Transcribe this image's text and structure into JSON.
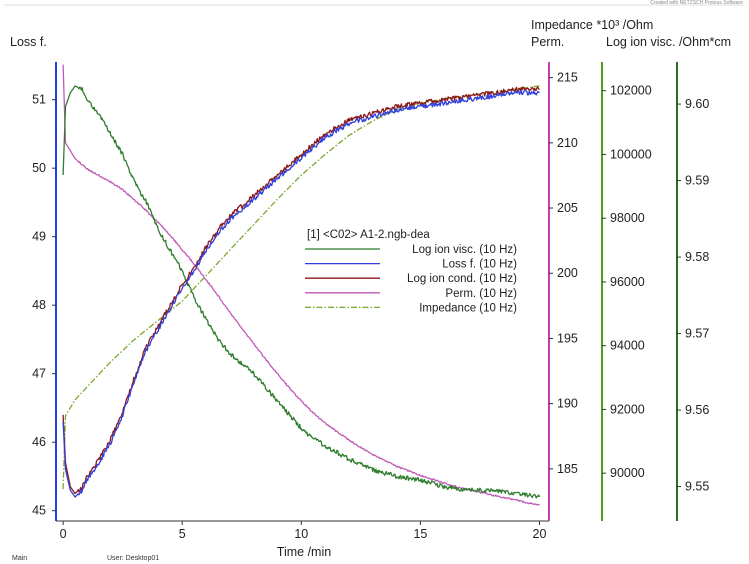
{
  "header": {
    "watermark": "Created with NETZSCH Proteus Software"
  },
  "footer": {
    "left": "Main",
    "user": "User: Desktop01"
  },
  "colors": {
    "log_ion_visc": "#2f7d2f",
    "loss_f": "#2e3fdc",
    "log_ion_cond": "#8b1a1a",
    "perm": "#c05ab8",
    "impedance": "#7aa82a",
    "left_axis": "#1f3fe0",
    "right_axis_perm": "#c040b0",
    "right_axis_imp": "#4f9e1a",
    "right_axis_visc": "#2b6e1f"
  },
  "chart_data": {
    "type": "line",
    "title": "",
    "xlabel": "Time /min",
    "x_ticks": [
      "0",
      "5",
      "10",
      "15",
      "20"
    ],
    "xlim": [
      -0.3,
      20.4
    ],
    "axes": {
      "loss_f": {
        "label": "Loss f.",
        "ticks": [
          "45",
          "46",
          "47",
          "48",
          "49",
          "50",
          "51"
        ],
        "range": [
          44.85,
          51.55
        ]
      },
      "perm": {
        "label": "Perm.",
        "extra_label": "Impedance *10³ /Ohm",
        "ticks": [
          "185",
          "190",
          "195",
          "200",
          "205",
          "210",
          "215"
        ],
        "range": [
          181.0,
          216.2
        ]
      },
      "impedance": {
        "label": "",
        "ticks": [
          "90000",
          "92000",
          "94000",
          "96000",
          "98000",
          "100000",
          "102000"
        ],
        "range": [
          88500,
          102900
        ]
      },
      "log_ion_visc": {
        "label": "Log ion visc. /Ohm*cm",
        "ticks": [
          "9.55",
          "9.56",
          "9.57",
          "9.58",
          "9.59",
          "9.60"
        ],
        "range": [
          9.5455,
          9.6055
        ]
      }
    },
    "legend": {
      "title": "[1] <C02> A1-2.ngb-dea",
      "position": "center"
    },
    "series": [
      {
        "name": "Log ion visc. (10 Hz)",
        "axis": "loss_f",
        "style": "solid",
        "points": [
          [
            0.0,
            49.9
          ],
          [
            0.1,
            50.9
          ],
          [
            0.3,
            51.1
          ],
          [
            0.5,
            51.2
          ],
          [
            0.8,
            51.15
          ],
          [
            1.0,
            51.0
          ],
          [
            1.5,
            50.8
          ],
          [
            2.0,
            50.5
          ],
          [
            2.5,
            50.2
          ],
          [
            3.0,
            49.8
          ],
          [
            3.5,
            49.5
          ],
          [
            4.0,
            49.1
          ],
          [
            4.5,
            48.8
          ],
          [
            5.0,
            48.5
          ],
          [
            5.5,
            48.1
          ],
          [
            6.0,
            47.8
          ],
          [
            6.5,
            47.5
          ],
          [
            7.0,
            47.3
          ],
          [
            7.5,
            47.15
          ],
          [
            8.0,
            47.0
          ],
          [
            8.5,
            46.8
          ],
          [
            9.0,
            46.6
          ],
          [
            9.5,
            46.4
          ],
          [
            10.0,
            46.2
          ],
          [
            10.5,
            46.05
          ],
          [
            11.0,
            45.95
          ],
          [
            12.0,
            45.75
          ],
          [
            13.0,
            45.6
          ],
          [
            14.0,
            45.5
          ],
          [
            15.0,
            45.45
          ],
          [
            16.0,
            45.35
          ],
          [
            17.0,
            45.3
          ],
          [
            18.0,
            45.3
          ],
          [
            19.0,
            45.25
          ],
          [
            20.0,
            45.2
          ]
        ]
      },
      {
        "name": "Loss f. (10 Hz)",
        "axis": "loss_f",
        "style": "solid",
        "points": [
          [
            0.0,
            46.3
          ],
          [
            0.1,
            45.6
          ],
          [
            0.3,
            45.3
          ],
          [
            0.5,
            45.2
          ],
          [
            0.8,
            45.3
          ],
          [
            1.0,
            45.45
          ],
          [
            1.5,
            45.7
          ],
          [
            2.0,
            46.0
          ],
          [
            2.5,
            46.4
          ],
          [
            3.0,
            46.9
          ],
          [
            3.5,
            47.35
          ],
          [
            4.0,
            47.65
          ],
          [
            4.5,
            47.95
          ],
          [
            5.0,
            48.25
          ],
          [
            5.5,
            48.5
          ],
          [
            6.0,
            48.8
          ],
          [
            6.5,
            49.05
          ],
          [
            7.0,
            49.25
          ],
          [
            7.5,
            49.4
          ],
          [
            8.0,
            49.55
          ],
          [
            8.5,
            49.7
          ],
          [
            9.0,
            49.85
          ],
          [
            9.5,
            50.0
          ],
          [
            10.0,
            50.15
          ],
          [
            10.5,
            50.3
          ],
          [
            11.0,
            50.45
          ],
          [
            12.0,
            50.65
          ],
          [
            13.0,
            50.75
          ],
          [
            14.0,
            50.85
          ],
          [
            15.0,
            50.9
          ],
          [
            16.0,
            50.95
          ],
          [
            17.0,
            51.0
          ],
          [
            18.0,
            51.05
          ],
          [
            19.0,
            51.1
          ],
          [
            20.0,
            51.1
          ]
        ]
      },
      {
        "name": "Log ion cond. (10 Hz)",
        "axis": "loss_f",
        "style": "solid",
        "points": [
          [
            0.0,
            46.4
          ],
          [
            0.1,
            45.7
          ],
          [
            0.3,
            45.35
          ],
          [
            0.5,
            45.25
          ],
          [
            0.8,
            45.35
          ],
          [
            1.0,
            45.5
          ],
          [
            1.5,
            45.75
          ],
          [
            2.0,
            46.05
          ],
          [
            2.5,
            46.45
          ],
          [
            3.0,
            46.95
          ],
          [
            3.5,
            47.4
          ],
          [
            4.0,
            47.7
          ],
          [
            4.5,
            48.0
          ],
          [
            5.0,
            48.3
          ],
          [
            5.5,
            48.55
          ],
          [
            6.0,
            48.85
          ],
          [
            6.5,
            49.1
          ],
          [
            7.0,
            49.3
          ],
          [
            7.5,
            49.45
          ],
          [
            8.0,
            49.6
          ],
          [
            8.5,
            49.75
          ],
          [
            9.0,
            49.9
          ],
          [
            9.5,
            50.05
          ],
          [
            10.0,
            50.2
          ],
          [
            10.5,
            50.35
          ],
          [
            11.0,
            50.5
          ],
          [
            12.0,
            50.7
          ],
          [
            13.0,
            50.8
          ],
          [
            14.0,
            50.9
          ],
          [
            15.0,
            50.95
          ],
          [
            16.0,
            51.0
          ],
          [
            17.0,
            51.05
          ],
          [
            18.0,
            51.1
          ],
          [
            19.0,
            51.15
          ],
          [
            20.0,
            51.15
          ]
        ]
      },
      {
        "name": "Perm. (10 Hz)",
        "axis": "perm",
        "style": "solid",
        "points": [
          [
            0.0,
            216.0
          ],
          [
            0.1,
            210.0
          ],
          [
            0.5,
            208.8
          ],
          [
            1.0,
            208.0
          ],
          [
            1.5,
            207.5
          ],
          [
            2.0,
            207.0
          ],
          [
            2.5,
            206.4
          ],
          [
            3.0,
            205.6
          ],
          [
            3.5,
            204.8
          ],
          [
            4.0,
            203.9
          ],
          [
            4.5,
            202.9
          ],
          [
            5.0,
            201.8
          ],
          [
            5.5,
            200.7
          ],
          [
            6.0,
            199.5
          ],
          [
            6.5,
            198.3
          ],
          [
            7.0,
            197.0
          ],
          [
            7.5,
            195.8
          ],
          [
            8.0,
            194.6
          ],
          [
            8.5,
            193.4
          ],
          [
            9.0,
            192.3
          ],
          [
            9.5,
            191.2
          ],
          [
            10.0,
            190.2
          ],
          [
            10.5,
            189.3
          ],
          [
            11.0,
            188.5
          ],
          [
            12.0,
            187.2
          ],
          [
            13.0,
            186.1
          ],
          [
            14.0,
            185.2
          ],
          [
            15.0,
            184.5
          ],
          [
            16.0,
            183.9
          ],
          [
            17.0,
            183.4
          ],
          [
            18.0,
            183.0
          ],
          [
            19.0,
            182.6
          ],
          [
            20.0,
            182.2
          ]
        ]
      },
      {
        "name": "Impedance (10 Hz)",
        "axis": "impedance",
        "style": "dashdot",
        "points": [
          [
            0.0,
            89500
          ],
          [
            0.1,
            91800
          ],
          [
            0.5,
            92300
          ],
          [
            1.0,
            92700
          ],
          [
            2.0,
            93500
          ],
          [
            3.0,
            94200
          ],
          [
            3.5,
            94500
          ],
          [
            4.0,
            94800
          ],
          [
            5.0,
            95400
          ],
          [
            6.0,
            96200
          ],
          [
            7.0,
            97000
          ],
          [
            8.0,
            97800
          ],
          [
            9.0,
            98600
          ],
          [
            10.0,
            99350
          ],
          [
            11.0,
            100000
          ],
          [
            12.0,
            100600
          ],
          [
            13.0,
            101050
          ],
          [
            14.0,
            101400
          ],
          [
            15.0,
            101600
          ],
          [
            16.0,
            101750
          ],
          [
            17.0,
            101850
          ],
          [
            18.0,
            101950
          ],
          [
            19.0,
            102050
          ],
          [
            20.0,
            102150
          ]
        ]
      }
    ]
  }
}
